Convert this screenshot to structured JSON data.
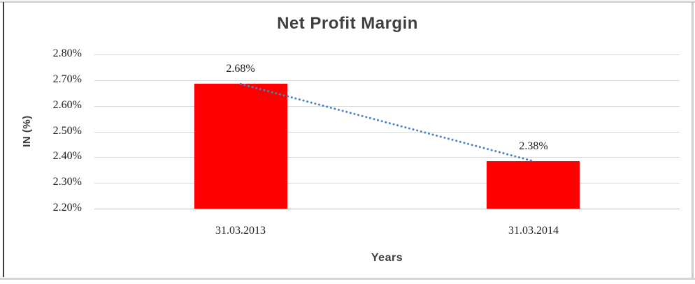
{
  "chart_data": {
    "type": "bar",
    "title": "Net Profit Margin",
    "xlabel": "Years",
    "ylabel": "IN (%)",
    "categories": [
      "31.03.2013",
      "31.03.2014"
    ],
    "values": [
      2.685,
      2.385
    ],
    "value_labels": [
      "2.68%",
      "2.38%"
    ],
    "ylim": [
      2.2,
      2.8
    ],
    "y_tick_step": 0.1,
    "y_ticks": [
      {
        "value": 2.8,
        "label": "2.80%"
      },
      {
        "value": 2.7,
        "label": "2.70%"
      },
      {
        "value": 2.6,
        "label": "2.60%"
      },
      {
        "value": 2.5,
        "label": "2.50%"
      },
      {
        "value": 2.4,
        "label": "2.40%"
      },
      {
        "value": 2.3,
        "label": "2.30%"
      },
      {
        "value": 2.2,
        "label": "2.20%"
      }
    ],
    "grid": "horizontal",
    "legend": "none",
    "trendline": {
      "style": "dotted",
      "from_category": "31.03.2013",
      "to_category": "31.03.2014"
    },
    "colors": {
      "bar": "#ff0000",
      "trendline": "#4a82c4",
      "gridline": "#d9d9d9",
      "axis_line": "#bfbfbf",
      "text": "#1f1f1f",
      "title_text": "#3f3f3f"
    }
  },
  "frame": {
    "border_left_color": "#3c3c3c",
    "border_other_color": "#d6d6d6"
  }
}
